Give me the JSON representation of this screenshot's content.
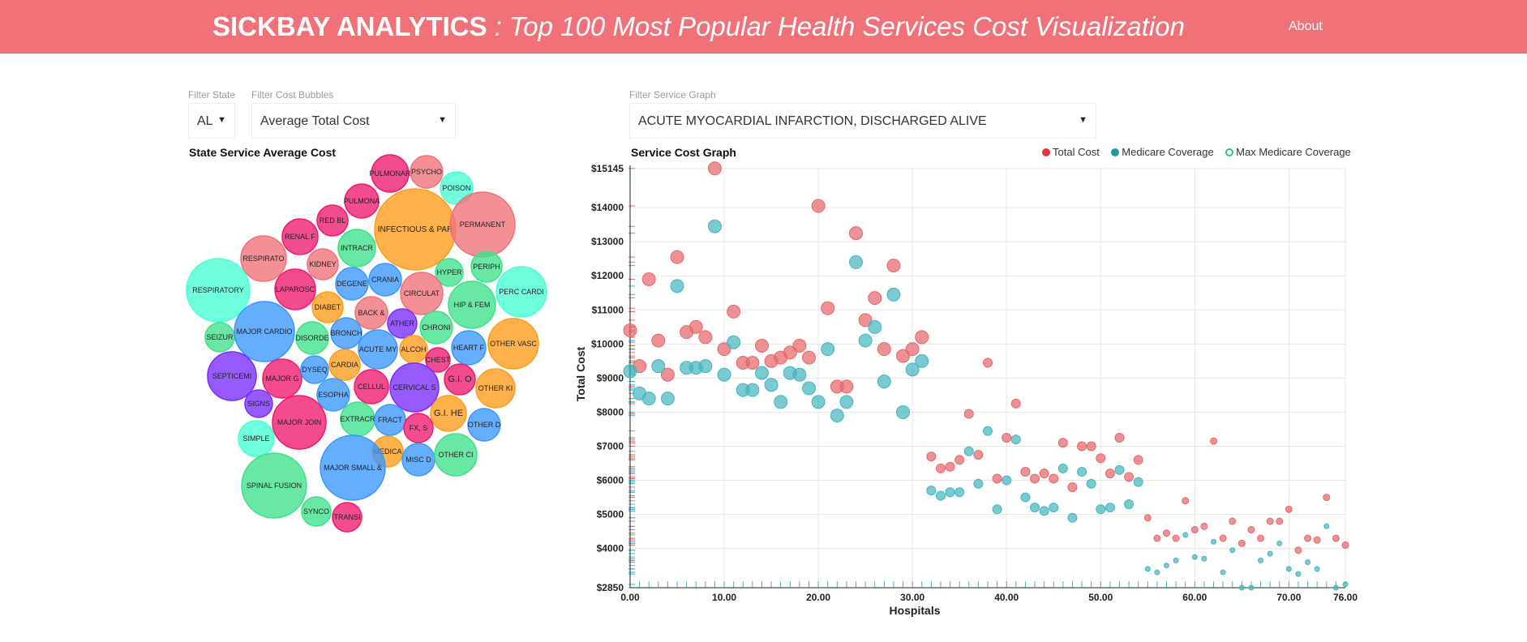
{
  "header": {
    "brand": "SICKBAY ANALYTICS",
    "tagline": " : Top 100 Most Popular Health Services Cost Visualization",
    "about": "About"
  },
  "filters": {
    "state_label": "Filter State",
    "state_value": "AL",
    "bubbles_label": "Filter Cost Bubbles",
    "bubbles_value": "Average Total Cost",
    "service_label": "Filter Service Graph",
    "service_value": "ACUTE MYOCARDIAL INFARCTION, DISCHARGED ALIVE"
  },
  "bubble_panel": {
    "title": "State Service Average Cost"
  },
  "graph_panel": {
    "title": "Service Cost Graph"
  },
  "colors": {
    "header": "#f07177",
    "total_cost": "#e8676c",
    "medicare": "#45b6bf",
    "max_medicare": "#2ec27e",
    "bubble_palette": [
      "#f0196e",
      "#f07177",
      "#48ffd5",
      "#3a97ff",
      "#ff9c1a",
      "#3fe08a",
      "#7a2bff"
    ]
  },
  "bubbles": [
    {
      "label": "PULMONAR",
      "c": 0
    },
    {
      "label": "PSYCHO",
      "c": 1
    },
    {
      "label": "POISON",
      "c": 2
    },
    {
      "label": "PULMONA",
      "c": 0
    },
    {
      "label": "RED BL",
      "c": 0
    },
    {
      "label": "INFECTIOUS & PAR",
      "c": 4
    },
    {
      "label": "PERMANENT",
      "c": 1
    },
    {
      "label": "RENAL F",
      "c": 0
    },
    {
      "label": "INTRACR",
      "c": 5
    },
    {
      "label": "RESPIRATO",
      "c": 1
    },
    {
      "label": "KIDNEY",
      "c": 1
    },
    {
      "label": "HYPER",
      "c": 5
    },
    {
      "label": "PERIPH",
      "c": 5
    },
    {
      "label": "RESPIRATORY",
      "c": 2
    },
    {
      "label": "CRANIA",
      "c": 3
    },
    {
      "label": "DEGENE",
      "c": 3
    },
    {
      "label": "LAPAROSC",
      "c": 0
    },
    {
      "label": "CIRCULAT",
      "c": 1
    },
    {
      "label": "PERC CARDI",
      "c": 2
    },
    {
      "label": "HIP & FEM",
      "c": 5
    },
    {
      "label": "DIABET",
      "c": 4
    },
    {
      "label": "BACK &",
      "c": 1
    },
    {
      "label": "ATHER",
      "c": 6
    },
    {
      "label": "SEIZUR",
      "c": 5
    },
    {
      "label": "MAJOR CARDIO",
      "c": 3
    },
    {
      "label": "DISORDE",
      "c": 5
    },
    {
      "label": "BRONCH",
      "c": 3
    },
    {
      "label": "CHRONI",
      "c": 5
    },
    {
      "label": "OTHER VASC",
      "c": 4
    },
    {
      "label": "ACUTE MY",
      "c": 3
    },
    {
      "label": "ALCOH",
      "c": 4
    },
    {
      "label": "HEART F",
      "c": 3
    },
    {
      "label": "SEPTICEMI",
      "c": 6
    },
    {
      "label": "MAJOR G",
      "c": 0
    },
    {
      "label": "DYSEQ",
      "c": 3
    },
    {
      "label": "CARDIA",
      "c": 4
    },
    {
      "label": "CHEST",
      "c": 0
    },
    {
      "label": "G.I. O",
      "c": 0
    },
    {
      "label": "CELLUL",
      "c": 0
    },
    {
      "label": "CERVICAL S",
      "c": 6
    },
    {
      "label": "OTHER KI",
      "c": 4
    },
    {
      "label": "SIGNS",
      "c": 6
    },
    {
      "label": "ESOPHA",
      "c": 3
    },
    {
      "label": "MAJOR JOIN",
      "c": 0
    },
    {
      "label": "EXTRACR",
      "c": 5
    },
    {
      "label": "FRACT",
      "c": 3
    },
    {
      "label": "G.I. HE",
      "c": 4
    },
    {
      "label": "FX, S",
      "c": 0
    },
    {
      "label": "OTHER D",
      "c": 3
    },
    {
      "label": "SIMPLE",
      "c": 2
    },
    {
      "label": "MEDICA",
      "c": 4
    },
    {
      "label": "MISC D",
      "c": 3
    },
    {
      "label": "OTHER CI",
      "c": 5
    },
    {
      "label": "MAJOR SMALL &",
      "c": 3
    },
    {
      "label": "SPINAL FUSION",
      "c": 5
    },
    {
      "label": "SYNCO",
      "c": 5
    },
    {
      "label": "TRANSI",
      "c": 0
    }
  ],
  "chart_data": {
    "type": "scatter",
    "title": "Service Cost Graph",
    "xlabel": "Hospitals",
    "ylabel": "Total Cost",
    "xlim": [
      0,
      76
    ],
    "ylim": [
      2850,
      15145
    ],
    "x_ticks": [
      "0.00",
      "10.00",
      "20.00",
      "30.00",
      "40.00",
      "50.00",
      "60.00",
      "70.00",
      "76.00"
    ],
    "y_ticks": [
      "$2850",
      "$4000",
      "$5000",
      "$6000",
      "$7000",
      "$8000",
      "$9000",
      "$10000",
      "$11000",
      "$12000",
      "$13000",
      "$14000",
      "$15145"
    ],
    "grid": true,
    "legend_position": "top-right",
    "series": [
      {
        "name": "Total Cost",
        "points": [
          [
            0,
            10400
          ],
          [
            1,
            9350
          ],
          [
            2,
            11900
          ],
          [
            3,
            10100
          ],
          [
            4,
            9100
          ],
          [
            5,
            12550
          ],
          [
            6,
            10350
          ],
          [
            7,
            10500
          ],
          [
            8,
            10200
          ],
          [
            9,
            15150
          ],
          [
            10,
            9850
          ],
          [
            11,
            10950
          ],
          [
            12,
            9450
          ],
          [
            13,
            9450
          ],
          [
            14,
            9950
          ],
          [
            15,
            9500
          ],
          [
            16,
            9600
          ],
          [
            17,
            9750
          ],
          [
            18,
            9950
          ],
          [
            19,
            9600
          ],
          [
            20,
            14050
          ],
          [
            21,
            11050
          ],
          [
            22,
            8750
          ],
          [
            23,
            8750
          ],
          [
            24,
            13250
          ],
          [
            25,
            10700
          ],
          [
            26,
            11350
          ],
          [
            27,
            9850
          ],
          [
            28,
            12300
          ],
          [
            29,
            9650
          ],
          [
            30,
            9850
          ],
          [
            31,
            10200
          ],
          [
            32,
            6700
          ],
          [
            33,
            6350
          ],
          [
            34,
            6400
          ],
          [
            35,
            6600
          ],
          [
            36,
            7950
          ],
          [
            37,
            6750
          ],
          [
            38,
            9450
          ],
          [
            39,
            6050
          ],
          [
            40,
            7250
          ],
          [
            41,
            8250
          ],
          [
            42,
            6250
          ],
          [
            43,
            6050
          ],
          [
            44,
            6200
          ],
          [
            45,
            6050
          ],
          [
            46,
            7100
          ],
          [
            47,
            5800
          ],
          [
            48,
            7000
          ],
          [
            49,
            7000
          ],
          [
            50,
            6650
          ],
          [
            51,
            6200
          ],
          [
            52,
            7250
          ],
          [
            53,
            6100
          ],
          [
            54,
            6600
          ],
          [
            55,
            4900
          ],
          [
            56,
            4300
          ],
          [
            57,
            4450
          ],
          [
            58,
            4300
          ],
          [
            59,
            5400
          ],
          [
            60,
            4550
          ],
          [
            61,
            4650
          ],
          [
            62,
            7150
          ],
          [
            63,
            4300
          ],
          [
            64,
            4800
          ],
          [
            65,
            4150
          ],
          [
            66,
            4550
          ],
          [
            67,
            4300
          ],
          [
            68,
            4800
          ],
          [
            69,
            4800
          ],
          [
            70,
            5150
          ],
          [
            71,
            3950
          ],
          [
            72,
            4300
          ],
          [
            73,
            4250
          ],
          [
            74,
            5500
          ],
          [
            75,
            4300
          ],
          [
            76,
            4100
          ]
        ]
      },
      {
        "name": "Medicare Coverage",
        "points": [
          [
            0,
            9200
          ],
          [
            1,
            8550
          ],
          [
            2,
            8400
          ],
          [
            3,
            9350
          ],
          [
            4,
            8400
          ],
          [
            5,
            11700
          ],
          [
            6,
            9300
          ],
          [
            7,
            9300
          ],
          [
            8,
            9350
          ],
          [
            9,
            13450
          ],
          [
            10,
            9100
          ],
          [
            11,
            10050
          ],
          [
            12,
            8650
          ],
          [
            13,
            8650
          ],
          [
            14,
            9150
          ],
          [
            15,
            8800
          ],
          [
            16,
            8300
          ],
          [
            17,
            9150
          ],
          [
            18,
            9100
          ],
          [
            19,
            8700
          ],
          [
            20,
            8300
          ],
          [
            21,
            9850
          ],
          [
            22,
            7900
          ],
          [
            23,
            8300
          ],
          [
            24,
            12400
          ],
          [
            25,
            10100
          ],
          [
            26,
            10500
          ],
          [
            27,
            8900
          ],
          [
            28,
            11450
          ],
          [
            29,
            8000
          ],
          [
            30,
            9250
          ],
          [
            31,
            9500
          ],
          [
            32,
            5700
          ],
          [
            33,
            5550
          ],
          [
            34,
            5650
          ],
          [
            35,
            5650
          ],
          [
            36,
            6850
          ],
          [
            37,
            5900
          ],
          [
            38,
            7450
          ],
          [
            39,
            5150
          ],
          [
            40,
            6000
          ],
          [
            41,
            7200
          ],
          [
            42,
            5500
          ],
          [
            43,
            5200
          ],
          [
            44,
            5100
          ],
          [
            45,
            5200
          ],
          [
            46,
            6350
          ],
          [
            47,
            4900
          ],
          [
            48,
            6250
          ],
          [
            49,
            5900
          ],
          [
            50,
            5150
          ],
          [
            51,
            5200
          ],
          [
            52,
            6300
          ],
          [
            53,
            5300
          ],
          [
            54,
            5950
          ],
          [
            55,
            3400
          ],
          [
            56,
            3300
          ],
          [
            57,
            3500
          ],
          [
            58,
            3650
          ],
          [
            59,
            4400
          ],
          [
            60,
            3750
          ],
          [
            61,
            3700
          ],
          [
            62,
            4200
          ],
          [
            63,
            3300
          ],
          [
            64,
            3950
          ],
          [
            65,
            2850
          ],
          [
            66,
            2850
          ],
          [
            67,
            3650
          ],
          [
            68,
            3850
          ],
          [
            69,
            4150
          ],
          [
            70,
            3400
          ],
          [
            71,
            3250
          ],
          [
            72,
            3600
          ],
          [
            73,
            3400
          ],
          [
            74,
            4650
          ],
          [
            75,
            2850
          ],
          [
            76,
            2950
          ]
        ]
      }
    ]
  }
}
